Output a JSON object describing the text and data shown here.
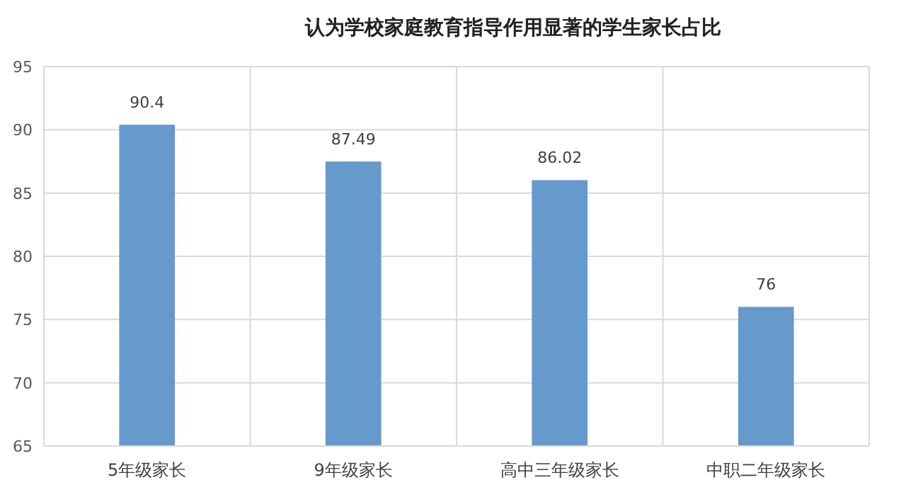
{
  "chart_data": {
    "type": "bar",
    "title": "认为学校家庭教育指导作用显著的学生家长占比",
    "categories": [
      "5年级家长",
      "9年级家长",
      "高中三年级家长",
      "中职二年级家长"
    ],
    "values": [
      90.4,
      87.49,
      86.02,
      76
    ],
    "color": "#6699cc",
    "ylim": [
      65,
      95
    ],
    "yticks": [
      65,
      70,
      75,
      80,
      85,
      90,
      95
    ],
    "grid": true,
    "data_labels": true
  }
}
